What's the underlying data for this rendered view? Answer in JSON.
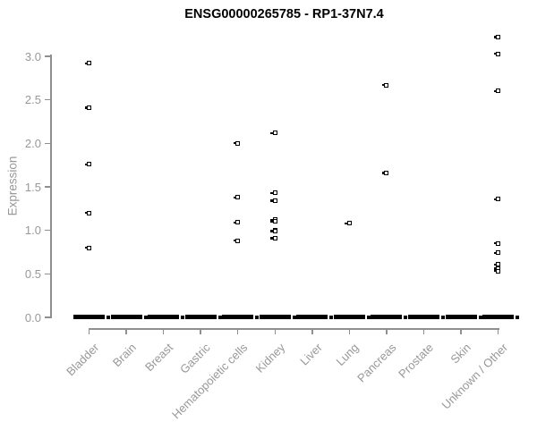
{
  "title": "ENSG00000265785 - RP1-37N7.4",
  "chart_data": {
    "type": "scatter",
    "title": "ENSG00000265785 - RP1-37N7.4",
    "xlabel": "",
    "ylabel": "Expression",
    "ylim": [
      0.0,
      3.3
    ],
    "yticks": [
      0.0,
      0.5,
      1.0,
      1.5,
      2.0,
      2.5,
      3.0
    ],
    "grid": "off",
    "legend": "none",
    "point_color": "#000000",
    "axis_color": "#989898",
    "categories": [
      {
        "label": "Bladder",
        "values": [
          2.92,
          2.41,
          1.76,
          1.2,
          0.8
        ],
        "has_zero_cluster": true
      },
      {
        "label": "Brain",
        "values": [],
        "has_zero_cluster": true
      },
      {
        "label": "Breast",
        "values": [],
        "has_zero_cluster": true
      },
      {
        "label": "Gastric",
        "values": [],
        "has_zero_cluster": true
      },
      {
        "label": "Hematopoietic cells",
        "values": [
          2.0,
          1.38,
          1.09,
          0.88
        ],
        "has_zero_cluster": true
      },
      {
        "label": "Kidney",
        "values": [
          2.12,
          1.43,
          1.34,
          1.12,
          1.1,
          1.0,
          0.99,
          0.91
        ],
        "has_zero_cluster": true
      },
      {
        "label": "Liver",
        "values": [],
        "has_zero_cluster": true
      },
      {
        "label": "Lung",
        "values": [
          1.08
        ],
        "has_zero_cluster": true
      },
      {
        "label": "Pancreas",
        "values": [
          2.67,
          1.66
        ],
        "has_zero_cluster": true
      },
      {
        "label": "Prostate",
        "values": [],
        "has_zero_cluster": true
      },
      {
        "label": "Skin",
        "values": [],
        "has_zero_cluster": true
      },
      {
        "label": "Unknown / Other",
        "values": [
          3.22,
          3.03,
          2.6,
          1.36,
          0.85,
          0.74,
          0.61,
          0.56,
          0.53
        ],
        "has_zero_cluster": true
      }
    ]
  }
}
